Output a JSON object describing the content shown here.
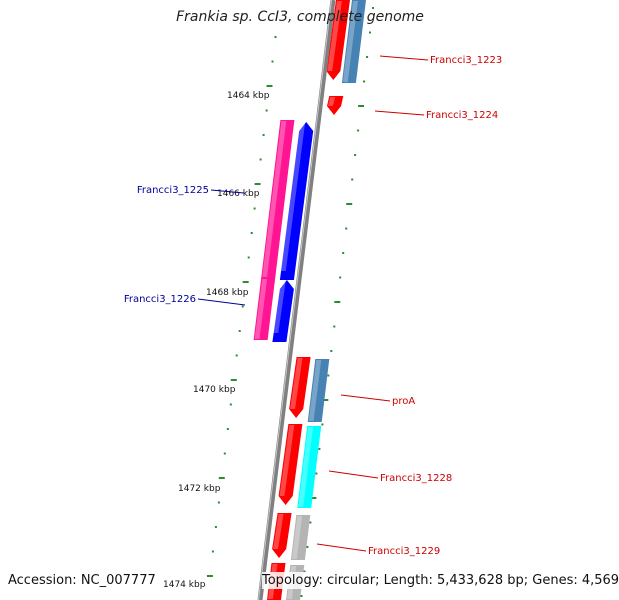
{
  "title": "Frankia sp. CcI3, complete genome",
  "footer": {
    "accession": "Accession: NC_007777",
    "summary": "Topology: circular; Length: 5,433,628 bp; Genes: 4,569"
  },
  "colors": {
    "backbone": "#808080",
    "tick": "#2e8b2e",
    "label_plus": "#cc0000",
    "label_minus": "#000099",
    "orf_red": "#ff0000",
    "pink": "#ff1493",
    "blue": "#0000ff",
    "steelblue": "#4682b4",
    "cyan": "#00ffff",
    "grey": "#b4b4b4"
  },
  "kbp_labels": [
    "1464 kbp",
    "1466 kbp",
    "1468 kbp",
    "1470 kbp",
    "1472 kbp",
    "1474 kbp"
  ],
  "gene_labels": [
    {
      "id": "plus-1",
      "text": "Francci3_1223",
      "strand": "plus"
    },
    {
      "id": "plus-2",
      "text": "Francci3_1224",
      "strand": "plus"
    },
    {
      "id": "minus-1",
      "text": "Francci3_1225",
      "strand": "minus"
    },
    {
      "id": "minus-2",
      "text": "Francci3_1226",
      "strand": "minus"
    },
    {
      "id": "plus-3",
      "text": "proA",
      "strand": "plus"
    },
    {
      "id": "plus-4",
      "text": "Francci3_1228",
      "strand": "plus"
    },
    {
      "id": "plus-5",
      "text": "Francci3_1229",
      "strand": "plus"
    }
  ]
}
